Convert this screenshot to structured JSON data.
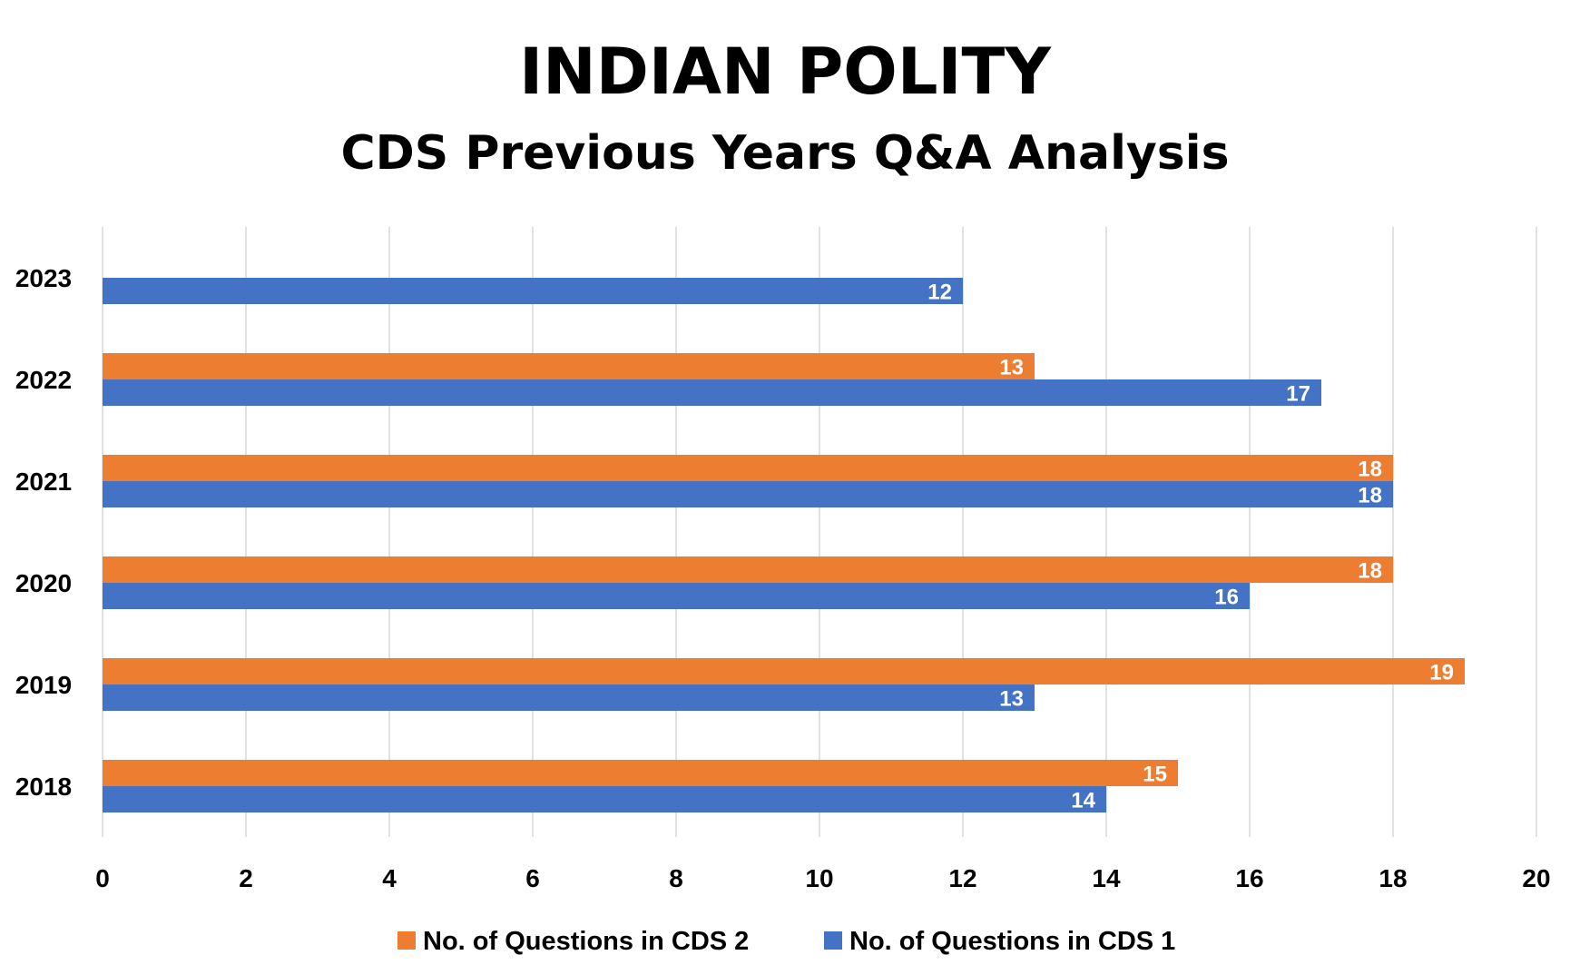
{
  "chart_data": {
    "type": "bar",
    "orientation": "horizontal",
    "title": "INDIAN POLITY",
    "subtitle": "CDS Previous Years Q&A Analysis",
    "xlabel": "",
    "ylabel": "",
    "categories": [
      "2023",
      "2022",
      "2021",
      "2020",
      "2019",
      "2018"
    ],
    "series": [
      {
        "name": "No. of Questions in CDS 2",
        "color": "#ed7d31",
        "values": [
          null,
          13,
          18,
          18,
          19,
          15
        ]
      },
      {
        "name": "No. of Questions in CDS 1",
        "color": "#4472c4",
        "values": [
          12,
          17,
          18,
          16,
          13,
          14
        ]
      }
    ],
    "xlim": [
      0,
      20
    ],
    "x_ticks": [
      "0",
      "2",
      "4",
      "6",
      "8",
      "10",
      "12",
      "14",
      "16",
      "18",
      "20"
    ],
    "grid": true,
    "legend_position": "bottom",
    "data_labels": true
  }
}
